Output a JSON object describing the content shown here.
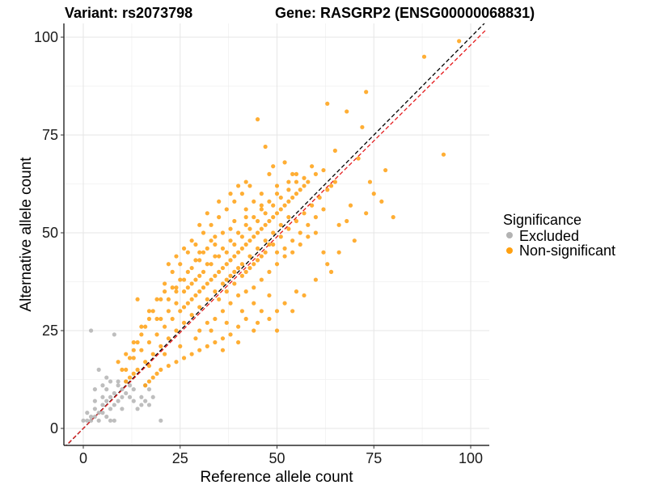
{
  "chart_data": {
    "type": "scatter",
    "title_left": "Variant: rs2073798",
    "title_right": "Gene: RASGRP2 (ENSG00000068831)",
    "xlabel": "Reference allele count",
    "ylabel": "Alternative allele count",
    "xlim": [
      -5,
      104
    ],
    "ylim": [
      -5,
      104
    ],
    "xticks": [
      0,
      25,
      50,
      75,
      100
    ],
    "yticks": [
      0,
      25,
      50,
      75,
      100
    ],
    "xtick_labels": [
      "0",
      "25",
      "50",
      "75",
      "100"
    ],
    "ytick_labels": [
      "0",
      "25",
      "50",
      "75",
      "100"
    ],
    "grid": true,
    "legend": {
      "title": "Significance",
      "position": "right",
      "entries": [
        {
          "label": "Excluded",
          "color": "#b3b3b3"
        },
        {
          "label": "Non-significant",
          "color": "#ffa010"
        }
      ]
    },
    "reference_lines": [
      {
        "name": "identity",
        "slope": 1.0,
        "intercept": 0,
        "color": "#000000",
        "dash": "dashed"
      },
      {
        "name": "fit",
        "slope": 0.98,
        "intercept": 0,
        "color": "#e41a1c",
        "dash": "dashed"
      }
    ],
    "series": [
      {
        "name": "Excluded",
        "color": "#b3b3b3",
        "points": [
          [
            0,
            2
          ],
          [
            1,
            2
          ],
          [
            1,
            4
          ],
          [
            2,
            2
          ],
          [
            2,
            3
          ],
          [
            2,
            25
          ],
          [
            3,
            5
          ],
          [
            3,
            7
          ],
          [
            3,
            3
          ],
          [
            4,
            4
          ],
          [
            4,
            15
          ],
          [
            4,
            2
          ],
          [
            5,
            6
          ],
          [
            5,
            8
          ],
          [
            5,
            4
          ],
          [
            6,
            7
          ],
          [
            6,
            10
          ],
          [
            6,
            3
          ],
          [
            7,
            8
          ],
          [
            7,
            5
          ],
          [
            7,
            12
          ],
          [
            8,
            9
          ],
          [
            8,
            6
          ],
          [
            8,
            2
          ],
          [
            8,
            24
          ],
          [
            9,
            11
          ],
          [
            9,
            7
          ],
          [
            9,
            12
          ],
          [
            10,
            10
          ],
          [
            10,
            8
          ],
          [
            10,
            5
          ],
          [
            11,
            9
          ],
          [
            11,
            12
          ],
          [
            12,
            11
          ],
          [
            12,
            8
          ],
          [
            13,
            7
          ],
          [
            13,
            10
          ],
          [
            14,
            5
          ],
          [
            15,
            8
          ],
          [
            15,
            6
          ],
          [
            16,
            7
          ],
          [
            16,
            11
          ],
          [
            17,
            6
          ],
          [
            17,
            10
          ],
          [
            18,
            8
          ],
          [
            20,
            2
          ],
          [
            5,
            11
          ],
          [
            3,
            10
          ],
          [
            6,
            13
          ],
          [
            7,
            2
          ]
        ]
      },
      {
        "name": "Non-significant",
        "color": "#ffa010",
        "points": [
          [
            97,
            99
          ],
          [
            88,
            95
          ],
          [
            73,
            86
          ],
          [
            63,
            83
          ],
          [
            68,
            81
          ],
          [
            45,
            79
          ],
          [
            72,
            77
          ],
          [
            47,
            72
          ],
          [
            93,
            70
          ],
          [
            65,
            71
          ],
          [
            71,
            69
          ],
          [
            78,
            66
          ],
          [
            52,
            68
          ],
          [
            59,
            67
          ],
          [
            49,
            67
          ],
          [
            62,
            66
          ],
          [
            55,
            65
          ],
          [
            57,
            64
          ],
          [
            48,
            65
          ],
          [
            42,
            63
          ],
          [
            53,
            63
          ],
          [
            64,
            62
          ],
          [
            77,
            58
          ],
          [
            80,
            54
          ],
          [
            73,
            55
          ],
          [
            74,
            63
          ],
          [
            75,
            60
          ],
          [
            69,
            57
          ],
          [
            68,
            53
          ],
          [
            66,
            52
          ],
          [
            62,
            56
          ],
          [
            60,
            54
          ],
          [
            58,
            52
          ],
          [
            56,
            50
          ],
          [
            54,
            48
          ],
          [
            52,
            46
          ],
          [
            50,
            45
          ],
          [
            48,
            47
          ],
          [
            46,
            44
          ],
          [
            44,
            42
          ],
          [
            42,
            40
          ],
          [
            40,
            41
          ],
          [
            38,
            39
          ],
          [
            36,
            37
          ],
          [
            34,
            35
          ],
          [
            32,
            33
          ],
          [
            30,
            31
          ],
          [
            28,
            29
          ],
          [
            26,
            27
          ],
          [
            24,
            25
          ],
          [
            22,
            23
          ],
          [
            20,
            21
          ],
          [
            18,
            19
          ],
          [
            16,
            17
          ],
          [
            14,
            15
          ],
          [
            12,
            13
          ],
          [
            11,
            15
          ],
          [
            13,
            18
          ],
          [
            15,
            20
          ],
          [
            17,
            22
          ],
          [
            19,
            24
          ],
          [
            21,
            26
          ],
          [
            23,
            28
          ],
          [
            25,
            30
          ],
          [
            27,
            32
          ],
          [
            29,
            34
          ],
          [
            31,
            36
          ],
          [
            33,
            38
          ],
          [
            35,
            40
          ],
          [
            37,
            42
          ],
          [
            39,
            44
          ],
          [
            41,
            46
          ],
          [
            43,
            48
          ],
          [
            45,
            50
          ],
          [
            47,
            52
          ],
          [
            49,
            54
          ],
          [
            51,
            56
          ],
          [
            53,
            58
          ],
          [
            55,
            60
          ],
          [
            57,
            62
          ],
          [
            30,
            52
          ],
          [
            32,
            55
          ],
          [
            35,
            58
          ],
          [
            38,
            60
          ],
          [
            40,
            62
          ],
          [
            28,
            48
          ],
          [
            26,
            46
          ],
          [
            24,
            44
          ],
          [
            22,
            42
          ],
          [
            25,
            38
          ],
          [
            27,
            40
          ],
          [
            29,
            43
          ],
          [
            31,
            45
          ],
          [
            33,
            48
          ],
          [
            36,
            50
          ],
          [
            39,
            53
          ],
          [
            42,
            56
          ],
          [
            44,
            58
          ],
          [
            46,
            60
          ],
          [
            20,
            33
          ],
          [
            21,
            35
          ],
          [
            23,
            36
          ],
          [
            18,
            30
          ],
          [
            17,
            28
          ],
          [
            16,
            26
          ],
          [
            15,
            24
          ],
          [
            14,
            22
          ],
          [
            13,
            20
          ],
          [
            12,
            18
          ],
          [
            14,
            33
          ],
          [
            19,
            28
          ],
          [
            22,
            30
          ],
          [
            24,
            32
          ],
          [
            26,
            35
          ],
          [
            28,
            37
          ],
          [
            30,
            39
          ],
          [
            32,
            42
          ],
          [
            34,
            44
          ],
          [
            36,
            46
          ],
          [
            38,
            48
          ],
          [
            40,
            50
          ],
          [
            42,
            52
          ],
          [
            44,
            54
          ],
          [
            46,
            56
          ],
          [
            48,
            58
          ],
          [
            50,
            60
          ],
          [
            30,
            25
          ],
          [
            32,
            27
          ],
          [
            34,
            28
          ],
          [
            36,
            30
          ],
          [
            38,
            32
          ],
          [
            40,
            34
          ],
          [
            42,
            35
          ],
          [
            44,
            36
          ],
          [
            46,
            38
          ],
          [
            48,
            40
          ],
          [
            50,
            42
          ],
          [
            52,
            44
          ],
          [
            54,
            45
          ],
          [
            56,
            47
          ],
          [
            58,
            49
          ],
          [
            60,
            50
          ],
          [
            62,
            45
          ],
          [
            64,
            40
          ],
          [
            55,
            35
          ],
          [
            52,
            32
          ],
          [
            50,
            30
          ],
          [
            48,
            28
          ],
          [
            46,
            30
          ],
          [
            44,
            32
          ],
          [
            42,
            28
          ],
          [
            40,
            26
          ],
          [
            38,
            24
          ],
          [
            36,
            23
          ],
          [
            34,
            22
          ],
          [
            32,
            21
          ],
          [
            30,
            20
          ],
          [
            28,
            19
          ],
          [
            26,
            18
          ],
          [
            24,
            17
          ],
          [
            22,
            16
          ],
          [
            20,
            15
          ],
          [
            19,
            14
          ],
          [
            18,
            13
          ],
          [
            17,
            12
          ],
          [
            16,
            11
          ],
          [
            36,
            20
          ],
          [
            40,
            22
          ],
          [
            44,
            25
          ],
          [
            50,
            25
          ],
          [
            54,
            30
          ],
          [
            57,
            34
          ],
          [
            60,
            38
          ],
          [
            63,
            42
          ],
          [
            66,
            45
          ],
          [
            70,
            48
          ],
          [
            48,
            34
          ],
          [
            45,
            27
          ],
          [
            41,
            30
          ],
          [
            37,
            27
          ],
          [
            33,
            25
          ],
          [
            29,
            23
          ],
          [
            25,
            21
          ],
          [
            21,
            19
          ],
          [
            17,
            16
          ],
          [
            13,
            14
          ],
          [
            11,
            12
          ],
          [
            10,
            15
          ],
          [
            9,
            17
          ],
          [
            11,
            19
          ],
          [
            13,
            22
          ],
          [
            15,
            26
          ],
          [
            17,
            30
          ],
          [
            19,
            33
          ],
          [
            21,
            37
          ],
          [
            23,
            40
          ],
          [
            25,
            42
          ],
          [
            27,
            45
          ],
          [
            29,
            47
          ],
          [
            31,
            50
          ],
          [
            33,
            52
          ],
          [
            35,
            54
          ],
          [
            37,
            56
          ],
          [
            39,
            58
          ],
          [
            41,
            60
          ],
          [
            43,
            62
          ],
          [
            37,
            45
          ],
          [
            39,
            47
          ],
          [
            41,
            49
          ],
          [
            43,
            51
          ],
          [
            45,
            53
          ],
          [
            47,
            55
          ],
          [
            49,
            57
          ],
          [
            51,
            59
          ],
          [
            53,
            61
          ],
          [
            55,
            63
          ],
          [
            35,
            33
          ],
          [
            37,
            35
          ],
          [
            39,
            37
          ],
          [
            41,
            39
          ],
          [
            43,
            41
          ],
          [
            45,
            43
          ],
          [
            47,
            45
          ],
          [
            49,
            47
          ],
          [
            51,
            49
          ],
          [
            53,
            51
          ],
          [
            55,
            53
          ],
          [
            57,
            55
          ],
          [
            59,
            57
          ],
          [
            61,
            59
          ],
          [
            63,
            61
          ],
          [
            65,
            63
          ],
          [
            27,
            36
          ],
          [
            29,
            38
          ],
          [
            31,
            40
          ],
          [
            33,
            42
          ],
          [
            35,
            44
          ],
          [
            37,
            38
          ],
          [
            39,
            40
          ],
          [
            41,
            42
          ],
          [
            43,
            44
          ],
          [
            45,
            46
          ],
          [
            47,
            48
          ],
          [
            49,
            50
          ],
          [
            51,
            52
          ],
          [
            53,
            54
          ],
          [
            30,
            45
          ],
          [
            34,
            47
          ],
          [
            38,
            51
          ],
          [
            42,
            54
          ],
          [
            46,
            57
          ],
          [
            50,
            62
          ],
          [
            54,
            65
          ],
          [
            24,
            36
          ],
          [
            26,
            38
          ],
          [
            28,
            41
          ],
          [
            30,
            43
          ],
          [
            32,
            46
          ],
          [
            34,
            49
          ],
          [
            20,
            28
          ],
          [
            22,
            33
          ],
          [
            24,
            35
          ],
          [
            26,
            31
          ],
          [
            28,
            33
          ],
          [
            30,
            35
          ],
          [
            32,
            37
          ],
          [
            34,
            39
          ],
          [
            36,
            41
          ],
          [
            38,
            43
          ],
          [
            40,
            45
          ],
          [
            42,
            47
          ],
          [
            44,
            49
          ],
          [
            46,
            51
          ],
          [
            48,
            53
          ],
          [
            50,
            55
          ],
          [
            52,
            57
          ],
          [
            54,
            59
          ],
          [
            56,
            61
          ],
          [
            58,
            63
          ],
          [
            60,
            65
          ]
        ]
      }
    ]
  }
}
